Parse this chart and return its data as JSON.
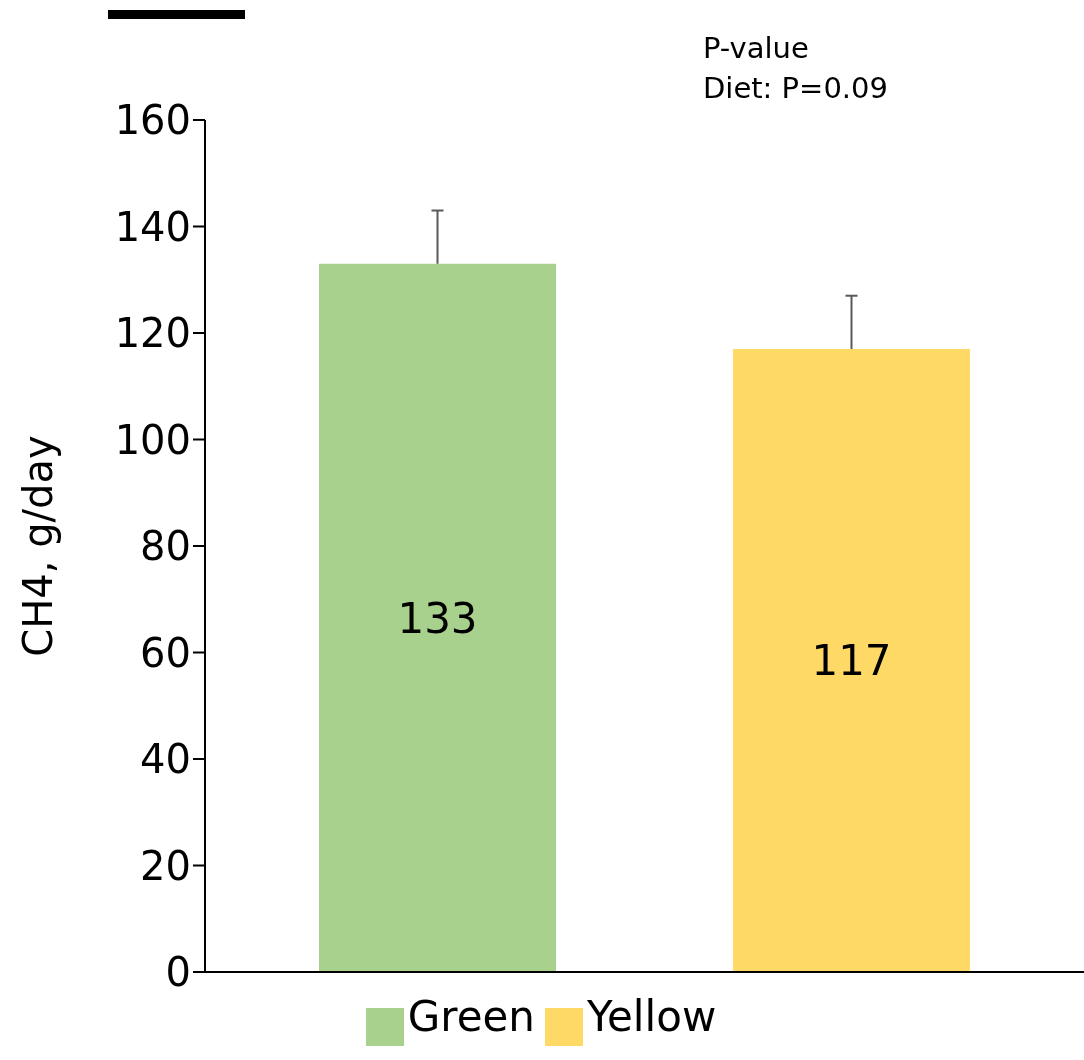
{
  "chart_data": {
    "type": "bar",
    "ylabel": "CH4, g/day",
    "annotations": [
      "P-value",
      "Diet: P=0.09"
    ],
    "categories": [
      null
    ],
    "series": [
      {
        "name": "Green",
        "color": "#a9d18e",
        "values": [
          133
        ],
        "errors": [
          [
            133,
            143
          ]
        ]
      },
      {
        "name": "Yellow",
        "color": "#ffd966",
        "values": [
          117
        ],
        "errors": [
          [
            117,
            127
          ]
        ]
      }
    ],
    "ylim": [
      0,
      160
    ],
    "yticks": [
      0,
      20,
      40,
      60,
      80,
      100,
      120,
      140,
      160
    ],
    "grid": false,
    "legend": "bottom",
    "data_labels": true
  }
}
